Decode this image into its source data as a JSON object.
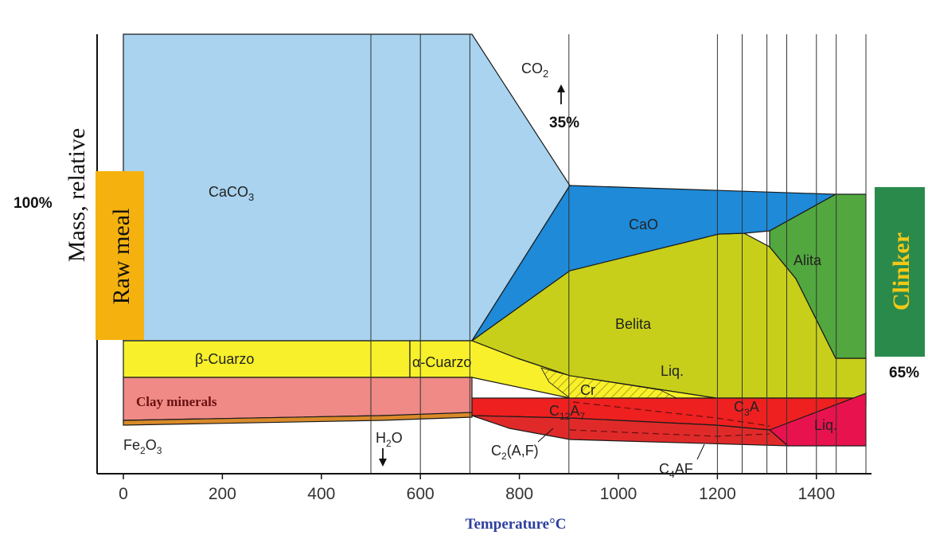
{
  "title": "",
  "colors": {
    "caco3": "#a9d3ee",
    "cao": "#1e8ad8",
    "belita": "#c7cf1a",
    "alita": "#52a83e",
    "cuarzo": "#f7f02a",
    "clay": "#ef8a86",
    "fe2o3": "#d98a2a",
    "c12a7": "#ee2020",
    "liq": "#e8124e",
    "raw_meal_box": "#f5b20f",
    "clinker_box": "#2a8a4c",
    "xlabel": "#2e3f9e"
  },
  "axes": {
    "ylabel": "Mass, relative",
    "xlabel": "Temperature°C",
    "xlim": [
      0,
      1500
    ],
    "ticks": [
      "0",
      "200",
      "400",
      "600",
      "800",
      "1000",
      "1200",
      "1400"
    ],
    "tick_values": [
      0,
      200,
      400,
      600,
      800,
      1000,
      1200,
      1400
    ],
    "vlines": [
      500,
      600,
      700,
      900,
      1200,
      1250,
      1300,
      1340,
      1400,
      1440,
      1500
    ]
  },
  "side": {
    "raw_meal": "Raw meal",
    "clinker": "Clinker",
    "pct_100": "100%",
    "pct_65": "65%",
    "pct_35": "35%"
  },
  "phases": {
    "caco3": {
      "base": "CaCO",
      "sub": "3"
    },
    "co2": {
      "base": "CO",
      "sub": "2"
    },
    "cao": "CaO",
    "alita": "Alita",
    "belita": "Belita",
    "beta_quartz": "β-Cuarzo",
    "alpha_quartz": "α-Cuarzo",
    "liq_upper": "Liq.",
    "cr": "Cr",
    "clay": "Clay minerals",
    "fe2o3": {
      "base": "Fe",
      "sub1": "2",
      "mid": "O",
      "sub2": "3"
    },
    "h2o": {
      "base": "H",
      "sub": "2",
      "end": "O"
    },
    "c12a7": {
      "base": "C",
      "sub1": "12",
      "mid": "A",
      "sub2": "7"
    },
    "c3a": {
      "base": "C",
      "sub": "3",
      "end": "A"
    },
    "c2af": {
      "base": "C",
      "sub": "2",
      "end": "(A,F)"
    },
    "c4af": {
      "base": "C",
      "sub": "4",
      "end": "AF"
    },
    "liq_lower": "Liq."
  }
}
